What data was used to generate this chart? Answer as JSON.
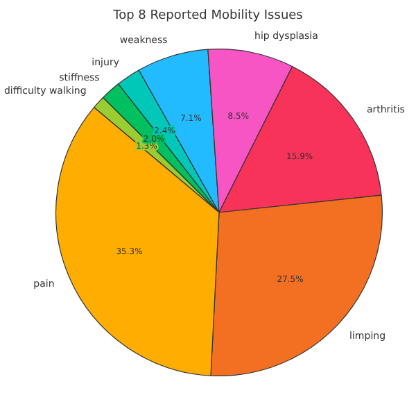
{
  "chart_data": {
    "type": "pie",
    "title": "Top 8 Reported Mobility Issues",
    "categories": [
      "difficulty walking",
      "stiffness",
      "injury",
      "weakness",
      "hip dysplasia",
      "arthritis",
      "limping",
      "pain"
    ],
    "values": [
      1.3,
      2.0,
      2.4,
      7.1,
      8.5,
      15.9,
      27.5,
      35.3
    ],
    "colors": [
      "#9acd32",
      "#00c060",
      "#00c8b8",
      "#22bbff",
      "#f754c4",
      "#f7335a",
      "#f37022",
      "#ffad00"
    ],
    "value_labels": [
      "1.3%",
      "2.0%",
      "2.4%",
      "7.1%",
      "8.5%",
      "15.9%",
      "27.5%",
      "35.3%"
    ],
    "legend": false
  }
}
